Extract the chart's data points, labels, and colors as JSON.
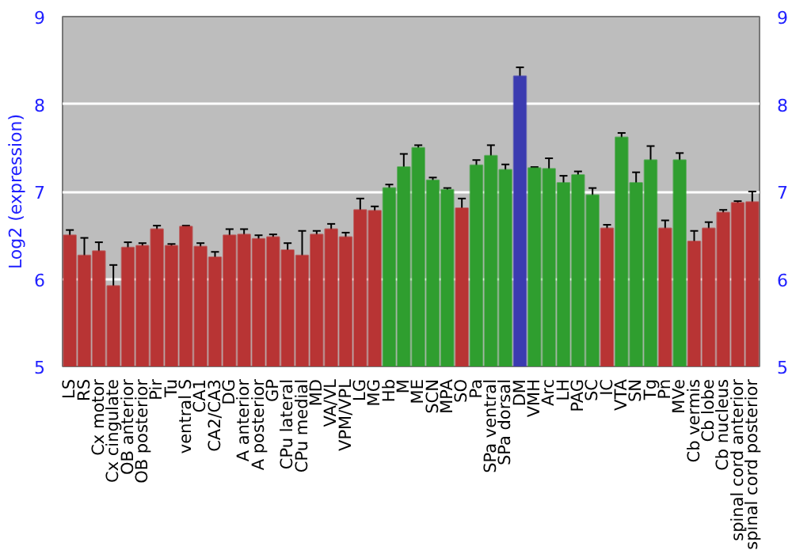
{
  "chart_data": {
    "type": "bar",
    "ylabel": "Log2 (expression)",
    "categories": [
      "LS",
      "RS",
      "Cx motor",
      "Cx cingulate",
      "OB anterior",
      "OB posterior",
      "Pir",
      "Tu",
      "ventral S",
      "CA1",
      "CA2/CA3",
      "DG",
      "A anterior",
      "A posterior",
      "GP",
      "CPu lateral",
      "CPu medial",
      "MD",
      "VA/VL",
      "VPM/VPL",
      "LG",
      "MG",
      "Hb",
      "M",
      "ME",
      "SCN",
      "MPA",
      "SO",
      "Pa",
      "SPa ventral",
      "SPa dorsal",
      "DM",
      "VMH",
      "Arc",
      "LH",
      "PAG",
      "SC",
      "IC",
      "VTA",
      "SN",
      "Tg",
      "Pn",
      "MVe",
      "Cb vermis",
      "Cb lobe",
      "Cb nucleus",
      "spinal cord anterior",
      "spinal cord posterior"
    ],
    "values": [
      6.5,
      6.27,
      6.32,
      5.92,
      6.36,
      6.38,
      6.57,
      6.38,
      6.6,
      6.37,
      6.25,
      6.5,
      6.51,
      6.46,
      6.48,
      6.33,
      6.27,
      6.51,
      6.57,
      6.48,
      6.79,
      6.78,
      7.04,
      7.28,
      7.5,
      7.13,
      7.02,
      6.81,
      7.3,
      7.41,
      7.25,
      8.32,
      7.27,
      7.26,
      7.1,
      7.19,
      6.96,
      6.58,
      7.62,
      7.1,
      7.36,
      6.58,
      7.36,
      6.43,
      6.58,
      6.76,
      6.87,
      6.88
    ],
    "errors": [
      0.06,
      0.2,
      0.1,
      0.24,
      0.06,
      0.03,
      0.04,
      0.02,
      0.01,
      0.04,
      0.06,
      0.07,
      0.06,
      0.04,
      0.03,
      0.08,
      0.28,
      0.04,
      0.06,
      0.05,
      0.13,
      0.05,
      0.04,
      0.15,
      0.03,
      0.03,
      0.02,
      0.11,
      0.06,
      0.12,
      0.06,
      0.1,
      0.01,
      0.12,
      0.08,
      0.04,
      0.08,
      0.04,
      0.05,
      0.12,
      0.16,
      0.09,
      0.08,
      0.12,
      0.07,
      0.03,
      0.02,
      0.12
    ],
    "colors": [
      "#b83434",
      "#b83434",
      "#b83434",
      "#b83434",
      "#b83434",
      "#b83434",
      "#b83434",
      "#b83434",
      "#b83434",
      "#b83434",
      "#b83434",
      "#b83434",
      "#b83434",
      "#b83434",
      "#b83434",
      "#b83434",
      "#b83434",
      "#b83434",
      "#b83434",
      "#b83434",
      "#b83434",
      "#b83434",
      "#2f9e2f",
      "#2f9e2f",
      "#2f9e2f",
      "#2f9e2f",
      "#2f9e2f",
      "#b83434",
      "#2f9e2f",
      "#2f9e2f",
      "#2f9e2f",
      "#3b3bb0",
      "#2f9e2f",
      "#2f9e2f",
      "#2f9e2f",
      "#2f9e2f",
      "#2f9e2f",
      "#b83434",
      "#2f9e2f",
      "#2f9e2f",
      "#2f9e2f",
      "#b83434",
      "#2f9e2f",
      "#b83434",
      "#b83434",
      "#b83434",
      "#b83434",
      "#b83434"
    ],
    "ylim": [
      5,
      9
    ],
    "yticks": [
      5,
      6,
      7,
      8,
      9
    ],
    "y2lim": [
      5,
      9
    ],
    "y2ticks": [
      5,
      6,
      7,
      8,
      9
    ],
    "grid": "y"
  }
}
